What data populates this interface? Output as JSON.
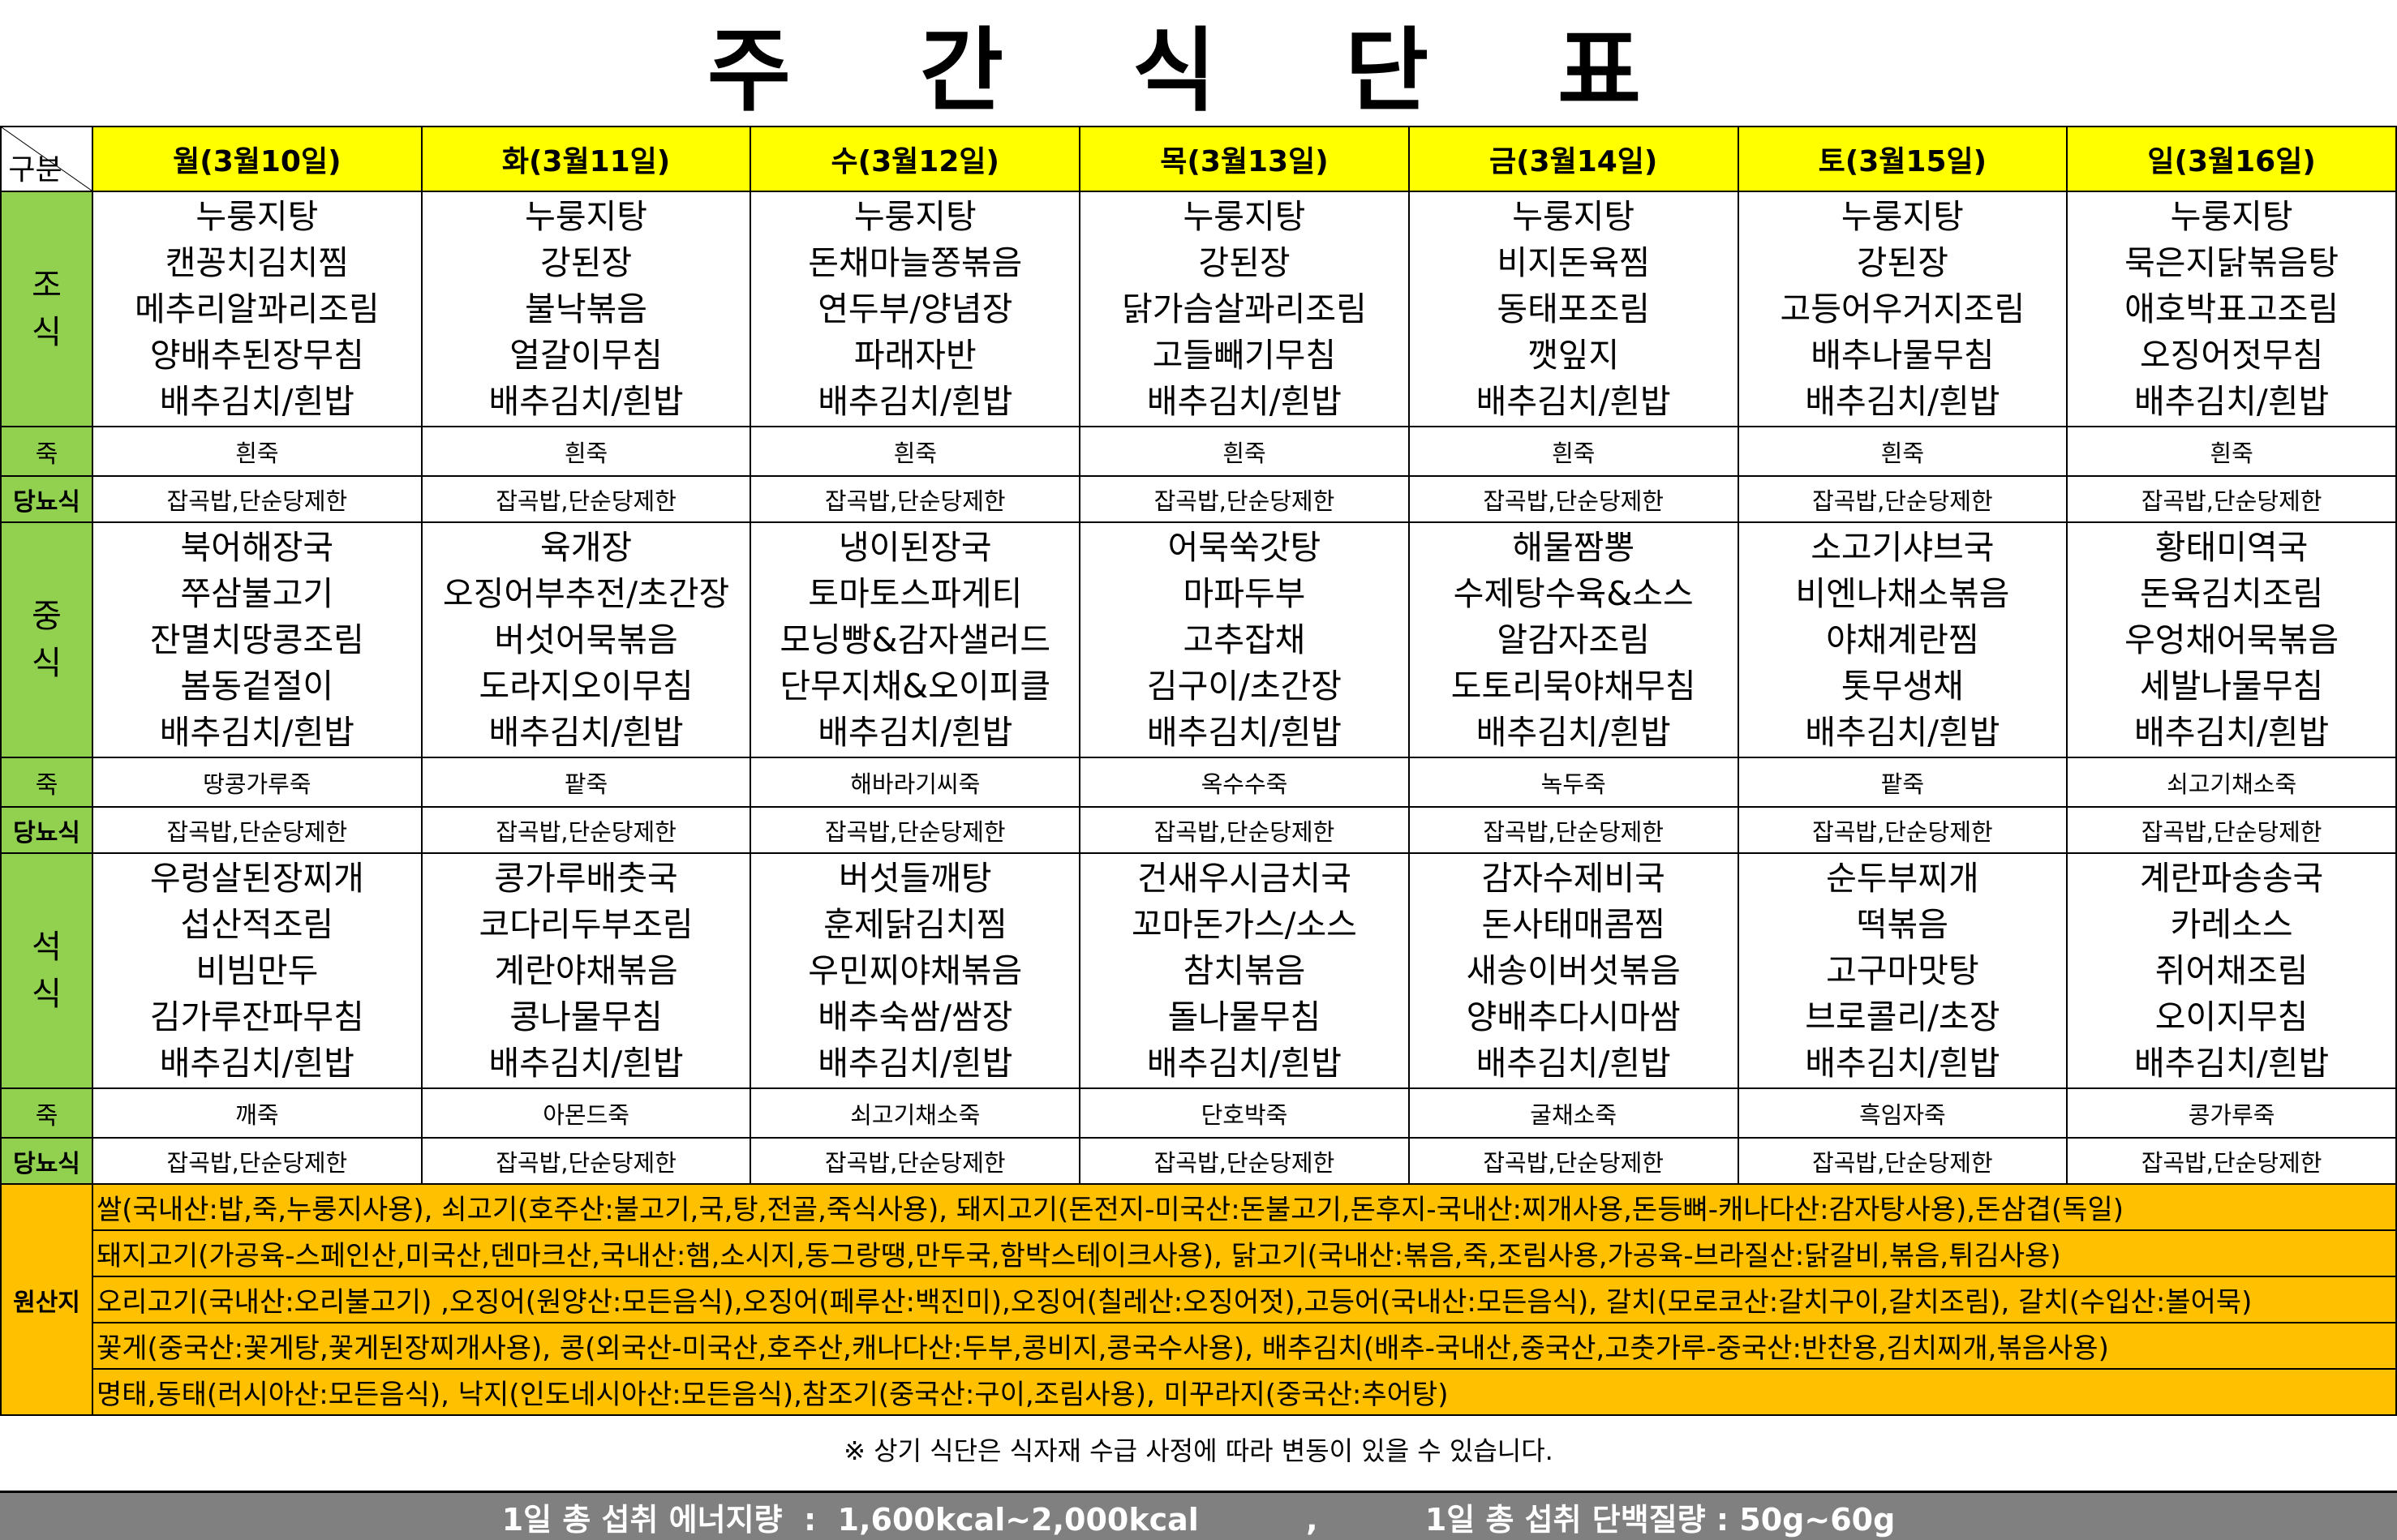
{
  "title": "주 간 식 단 표",
  "header": {
    "corner_label": "구분",
    "days": [
      "월(3월10일)",
      "화(3월11일)",
      "수(3월12일)",
      "목(3월13일)",
      "금(3월14일)",
      "토(3월15일)",
      "일(3월16일)"
    ]
  },
  "meals": [
    {
      "label": "조식",
      "porridge_label": "죽",
      "diabetic_label": "당뇨식",
      "menus": [
        [
          "누룽지탕",
          "캔꽁치김치찜",
          "메추리알꽈리조림",
          "양배추된장무침",
          "배추김치/흰밥"
        ],
        [
          "누룽지탕",
          "강된장",
          "불낙볶음",
          "얼갈이무침",
          "배추김치/흰밥"
        ],
        [
          "누룽지탕",
          "돈채마늘쫑볶음",
          "연두부/양념장",
          "파래자반",
          "배추김치/흰밥"
        ],
        [
          "누룽지탕",
          "강된장",
          "닭가슴살꽈리조림",
          "고들빼기무침",
          "배추김치/흰밥"
        ],
        [
          "누룽지탕",
          "비지돈육찜",
          "동태포조림",
          "깻잎지",
          "배추김치/흰밥"
        ],
        [
          "누룽지탕",
          "강된장",
          "고등어우거지조림",
          "배추나물무침",
          "배추김치/흰밥"
        ],
        [
          "누룽지탕",
          "묵은지닭볶음탕",
          "애호박표고조림",
          "오징어젓무침",
          "배추김치/흰밥"
        ]
      ],
      "porridge": [
        "흰죽",
        "흰죽",
        "흰죽",
        "흰죽",
        "흰죽",
        "흰죽",
        "흰죽"
      ],
      "diabetic": [
        "잡곡밥,단순당제한",
        "잡곡밥,단순당제한",
        "잡곡밥,단순당제한",
        "잡곡밥,단순당제한",
        "잡곡밥,단순당제한",
        "잡곡밥,단순당제한",
        "잡곡밥,단순당제한"
      ]
    },
    {
      "label": "중식",
      "porridge_label": "죽",
      "diabetic_label": "당뇨식",
      "menus": [
        [
          "북어해장국",
          "쭈삼불고기",
          "잔멸치땅콩조림",
          "봄동겉절이",
          "배추김치/흰밥"
        ],
        [
          "육개장",
          "오징어부추전/초간장",
          "버섯어묵볶음",
          "도라지오이무침",
          "배추김치/흰밥"
        ],
        [
          "냉이된장국",
          "토마토스파게티",
          "모닝빵&감자샐러드",
          "단무지채&오이피클",
          "배추김치/흰밥"
        ],
        [
          "어묵쑥갓탕",
          "마파두부",
          "고추잡채",
          "김구이/초간장",
          "배추김치/흰밥"
        ],
        [
          "해물짬뽕",
          "수제탕수육&소스",
          "알감자조림",
          "도토리묵야채무침",
          "배추김치/흰밥"
        ],
        [
          "소고기샤브국",
          "비엔나채소볶음",
          "야채계란찜",
          "톳무생채",
          "배추김치/흰밥"
        ],
        [
          "황태미역국",
          "돈육김치조림",
          "우엉채어묵볶음",
          "세발나물무침",
          "배추김치/흰밥"
        ]
      ],
      "porridge": [
        "땅콩가루죽",
        "팥죽",
        "해바라기씨죽",
        "옥수수죽",
        "녹두죽",
        "팥죽",
        "쇠고기채소죽"
      ],
      "diabetic": [
        "잡곡밥,단순당제한",
        "잡곡밥,단순당제한",
        "잡곡밥,단순당제한",
        "잡곡밥,단순당제한",
        "잡곡밥,단순당제한",
        "잡곡밥,단순당제한",
        "잡곡밥,단순당제한"
      ]
    },
    {
      "label": "석식",
      "porridge_label": "죽",
      "diabetic_label": "당뇨식",
      "menus": [
        [
          "우렁살된장찌개",
          "섭산적조림",
          "비빔만두",
          "김가루잔파무침",
          "배추김치/흰밥"
        ],
        [
          "콩가루배춧국",
          "코다리두부조림",
          "계란야채볶음",
          "콩나물무침",
          "배추김치/흰밥"
        ],
        [
          "버섯들깨탕",
          "훈제닭김치찜",
          "우민찌야채볶음",
          "배추숙쌈/쌈장",
          "배추김치/흰밥"
        ],
        [
          "건새우시금치국",
          "꼬마돈가스/소스",
          "참치볶음",
          "돌나물무침",
          "배추김치/흰밥"
        ],
        [
          "감자수제비국",
          "돈사태매콤찜",
          "새송이버섯볶음",
          "양배추다시마쌈",
          "배추김치/흰밥"
        ],
        [
          "순두부찌개",
          "떡볶음",
          "고구마맛탕",
          "브로콜리/초장",
          "배추김치/흰밥"
        ],
        [
          "계란파송송국",
          "카레소스",
          "쥐어채조림",
          "오이지무침",
          "배추김치/흰밥"
        ]
      ],
      "porridge": [
        "깨죽",
        "아몬드죽",
        "쇠고기채소죽",
        "단호박죽",
        "굴채소죽",
        "흑임자죽",
        "콩가루죽"
      ],
      "diabetic": [
        "잡곡밥,단순당제한",
        "잡곡밥,단순당제한",
        "잡곡밥,단순당제한",
        "잡곡밥,단순당제한",
        "잡곡밥,단순당제한",
        "잡곡밥,단순당제한",
        "잡곡밥,단순당제한"
      ]
    }
  ],
  "origin": {
    "label": "원산지",
    "lines": [
      "쌀(국내산:밥,죽,누룽지사용), 쇠고기(호주산:불고기,국,탕,전골,죽식사용), 돼지고기(돈전지-미국산:돈불고기,돈후지-국내산:찌개사용,돈등뼈-캐나다산:감자탕사용),돈삼겹(독일)",
      "돼지고기(가공육-스페인산,미국산,덴마크산,국내산:햄,소시지,동그랑땡,만두국,함박스테이크사용), 닭고기(국내산:볶음,죽,조림사용,가공육-브라질산:닭갈비,볶음,튀김사용)",
      "오리고기(국내산:오리불고기) ,오징어(원양산:모든음식),오징어(페루산:백진미),오징어(칠레산:오징어젓),고등어(국내산:모든음식), 갈치(모로코산:갈치구이,갈치조림), 갈치(수입산:볼어묵)",
      "꽃게(중국산:꽃게탕,꽃게된장찌개사용), 콩(외국산-미국산,호주산,캐나다산:두부,콩비지,콩국수사용), 배추김치(배추-국내산,중국산,고춧가루-중국산:반찬용,김치찌개,볶음사용)",
      "명태,동태(러시아산:모든음식), 낙지(인도네시아산:모든음식),참조기(중국산:구이,조림사용),  미꾸라지(중국산:추어탕)"
    ]
  },
  "note": "※ 상기 식단은 식자재 수급 사정에 따라 변동이 있을 수 있습니다.",
  "footer": "1일 총 섭취 에너지량  :  1,600kcal~2,000kcal          ,          1일 총 섭취 단백질량 : 50g~60g",
  "colors": {
    "header_day": "#ffff00",
    "meal_label": "#92d050",
    "origin": "#ffc000",
    "footer_bar": "#808080"
  }
}
